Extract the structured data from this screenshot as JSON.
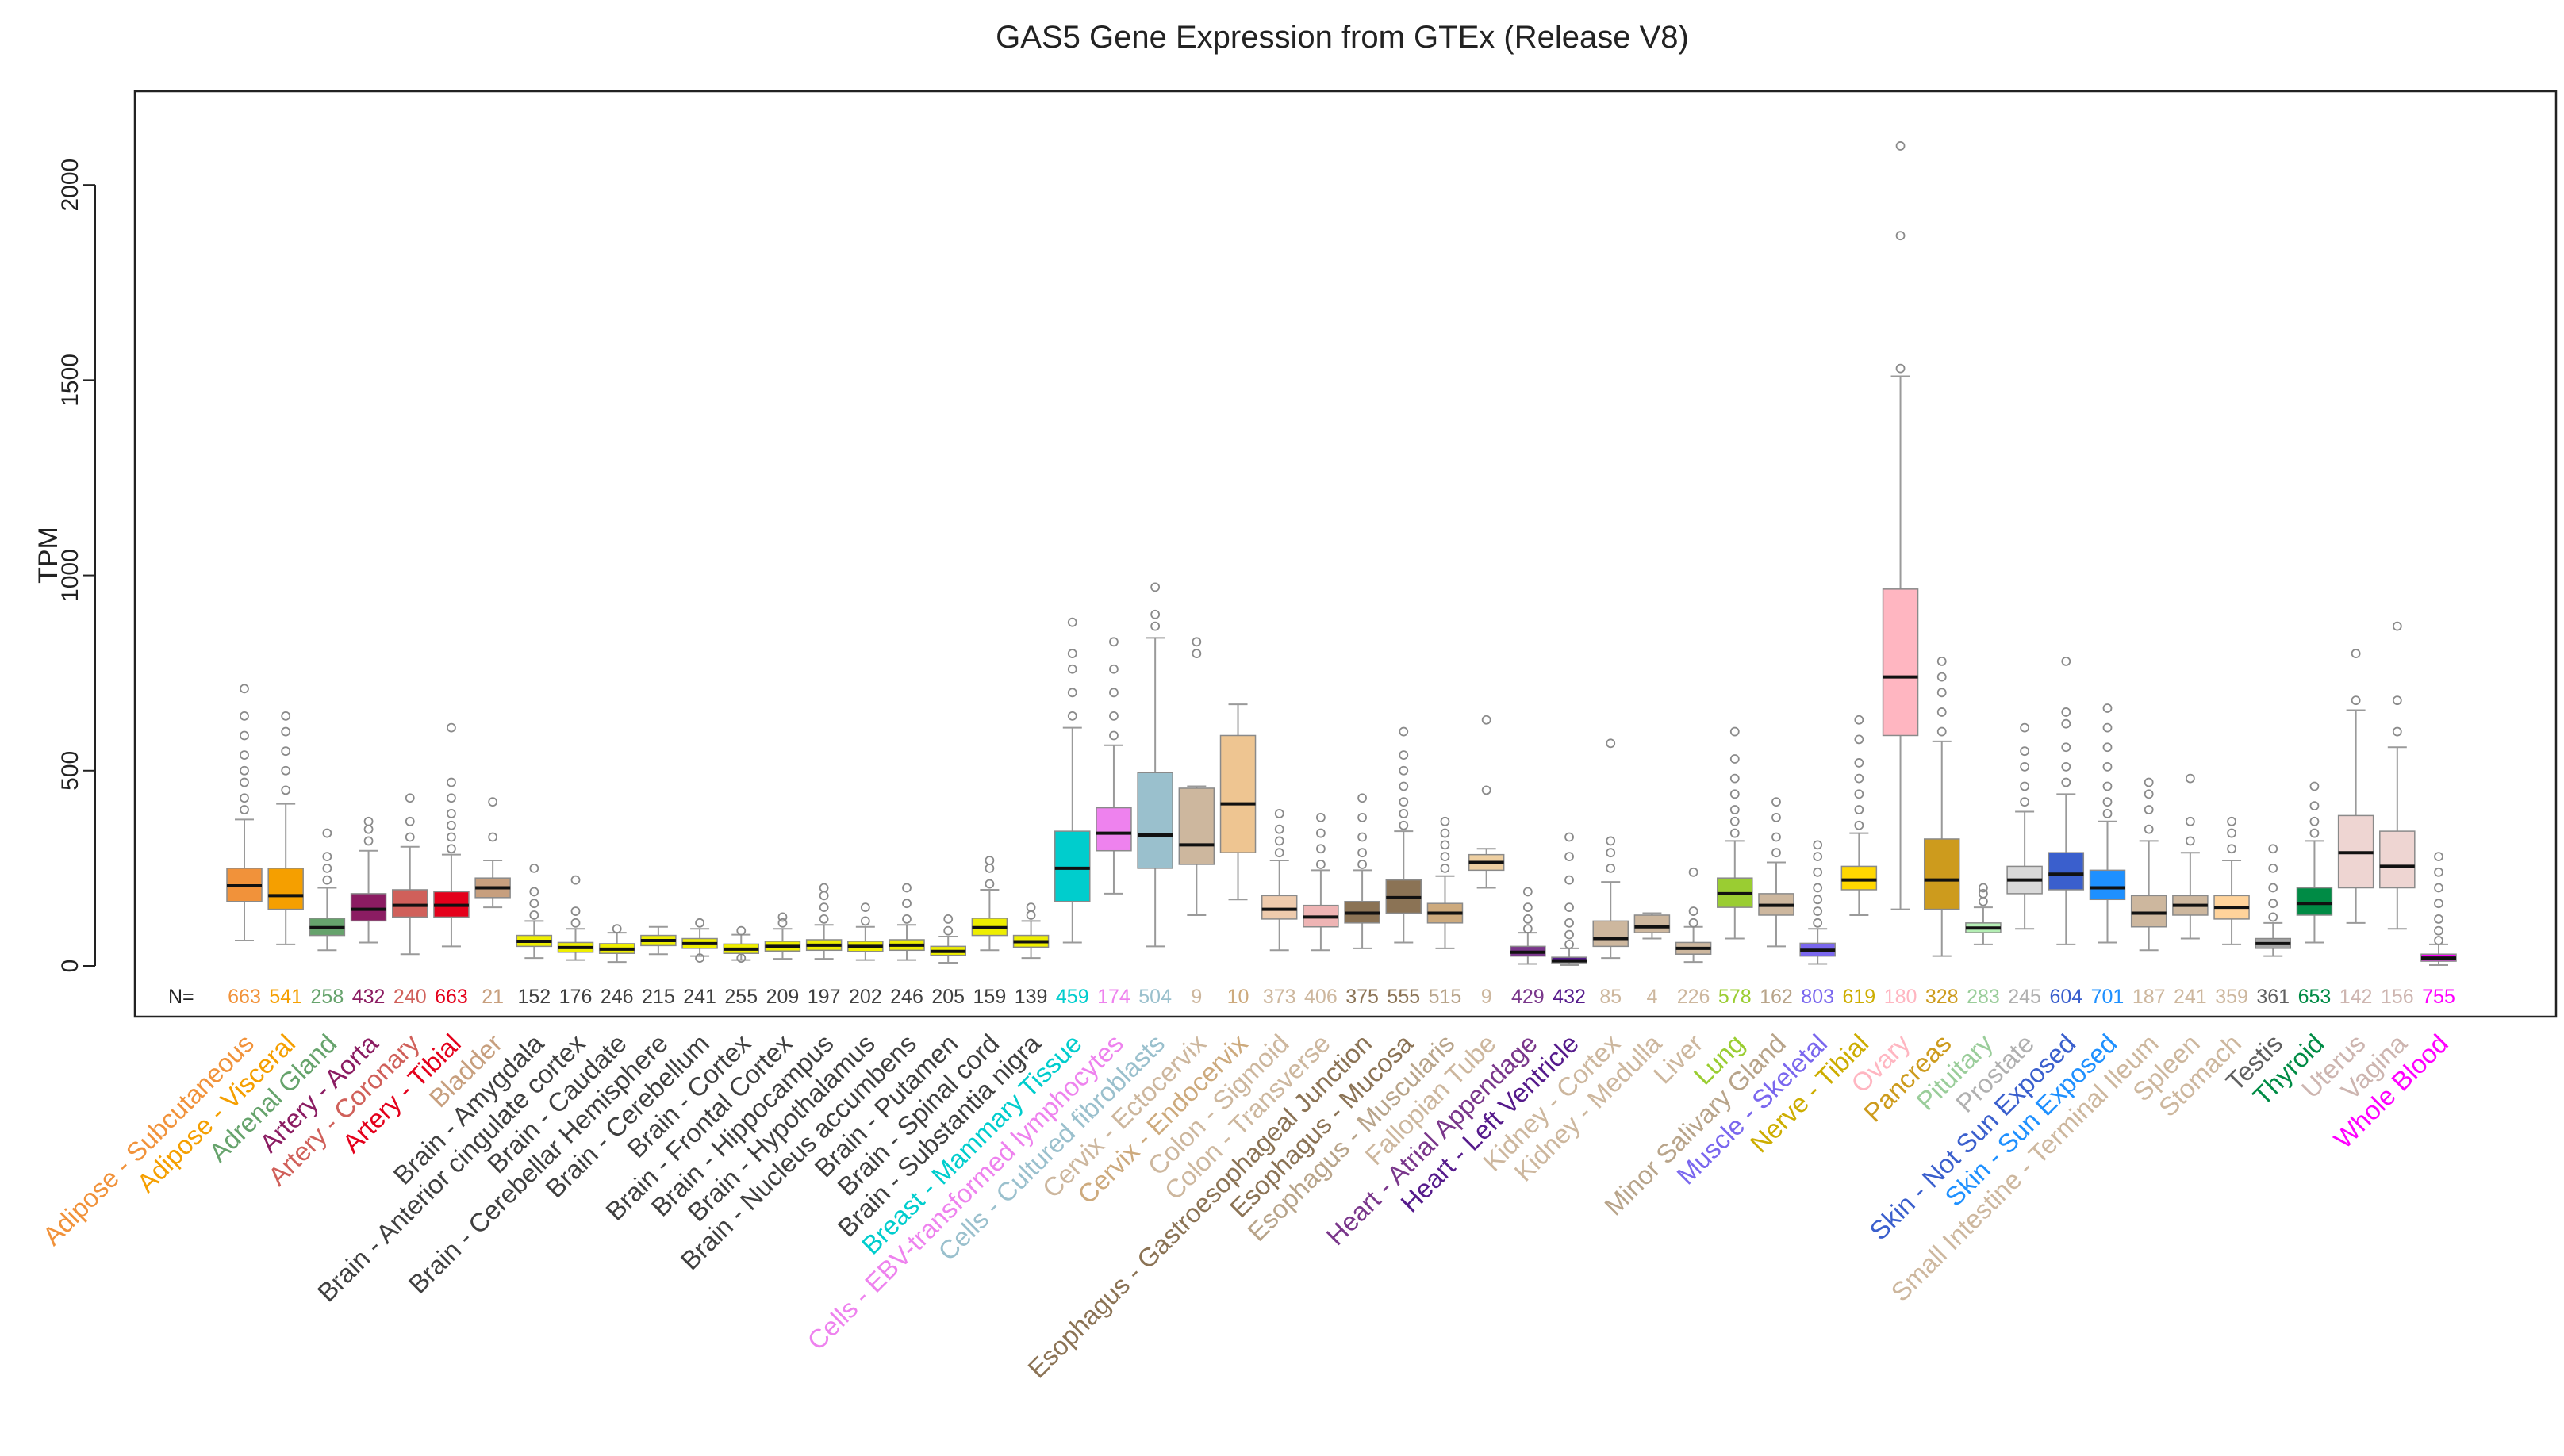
{
  "chart_data": {
    "type": "boxplot",
    "title": "GAS5 Gene Expression from GTEx (Release V8)",
    "ylabel": "TPM",
    "xlabel": "",
    "ylim": [
      -130,
      2240
    ],
    "yticks": [
      0,
      500,
      1000,
      1500,
      2000
    ],
    "n_label": "N=",
    "series": [
      {
        "name": "Adipose - Subcutaneous",
        "n": 663,
        "color": "#F1923A",
        "q1": 165,
        "median": 205,
        "q3": 250,
        "wlo": 65,
        "whi": 375,
        "outliers": [
          400,
          430,
          470,
          500,
          540,
          590,
          640,
          710
        ]
      },
      {
        "name": "Adipose - Visceral",
        "n": 541,
        "color": "#F59F00",
        "q1": 145,
        "median": 180,
        "q3": 250,
        "wlo": 55,
        "whi": 415,
        "outliers": [
          450,
          500,
          550,
          600,
          640
        ]
      },
      {
        "name": "Adrenal Gland",
        "n": 258,
        "color": "#66A36C",
        "q1": 78,
        "median": 98,
        "q3": 122,
        "wlo": 40,
        "whi": 200,
        "outliers": [
          220,
          250,
          280,
          340
        ]
      },
      {
        "name": "Artery - Aorta",
        "n": 432,
        "color": "#8B1C62",
        "q1": 115,
        "median": 145,
        "q3": 185,
        "wlo": 60,
        "whi": 295,
        "outliers": [
          320,
          350,
          370
        ]
      },
      {
        "name": "Artery - Coronary",
        "n": 240,
        "color": "#D0605A",
        "q1": 125,
        "median": 155,
        "q3": 195,
        "wlo": 30,
        "whi": 305,
        "outliers": [
          330,
          370,
          430
        ]
      },
      {
        "name": "Artery - Tibial",
        "n": 663,
        "color": "#E4001B",
        "q1": 125,
        "median": 155,
        "q3": 190,
        "wlo": 50,
        "whi": 285,
        "outliers": [
          300,
          330,
          360,
          390,
          430,
          470,
          610
        ]
      },
      {
        "name": "Bladder",
        "n": 21,
        "color": "#C79F7E",
        "q1": 175,
        "median": 200,
        "q3": 225,
        "wlo": 150,
        "whi": 270,
        "outliers": [
          330,
          420
        ]
      },
      {
        "name": "Brain - Amygdala",
        "n": 152,
        "color": "#EEEE00",
        "q1": 50,
        "median": 63,
        "q3": 78,
        "wlo": 20,
        "whi": 115,
        "outliers": [
          130,
          160,
          190,
          250
        ]
      },
      {
        "name": "Brain - Anterior cingulate cortex",
        "n": 176,
        "color": "#EEEE00",
        "q1": 35,
        "median": 47,
        "q3": 60,
        "wlo": 15,
        "whi": 95,
        "outliers": [
          110,
          140,
          220
        ]
      },
      {
        "name": "Brain - Caudate",
        "n": 246,
        "color": "#EEEE00",
        "q1": 32,
        "median": 43,
        "q3": 57,
        "wlo": 10,
        "whi": 85,
        "outliers": [
          95
        ]
      },
      {
        "name": "Brain - Cerebellar Hemisphere",
        "n": 215,
        "color": "#EEEE00",
        "q1": 52,
        "median": 65,
        "q3": 78,
        "wlo": 30,
        "whi": 100,
        "outliers": []
      },
      {
        "name": "Brain - Cerebellum",
        "n": 241,
        "color": "#EEEE00",
        "q1": 45,
        "median": 57,
        "q3": 70,
        "wlo": 25,
        "whi": 95,
        "outliers": [
          20,
          110
        ]
      },
      {
        "name": "Brain - Cortex",
        "n": 255,
        "color": "#EEEE00",
        "q1": 32,
        "median": 43,
        "q3": 56,
        "wlo": 15,
        "whi": 80,
        "outliers": [
          20,
          90
        ]
      },
      {
        "name": "Brain - Frontal Cortex",
        "n": 209,
        "color": "#EEEE00",
        "q1": 38,
        "median": 50,
        "q3": 63,
        "wlo": 18,
        "whi": 95,
        "outliers": [
          110,
          125
        ]
      },
      {
        "name": "Brain - Hippocampus",
        "n": 197,
        "color": "#EEEE00",
        "q1": 40,
        "median": 53,
        "q3": 67,
        "wlo": 18,
        "whi": 105,
        "outliers": [
          120,
          150,
          180,
          200
        ]
      },
      {
        "name": "Brain - Hypothalamus",
        "n": 202,
        "color": "#EEEE00",
        "q1": 37,
        "median": 50,
        "q3": 63,
        "wlo": 15,
        "whi": 100,
        "outliers": [
          115,
          150
        ]
      },
      {
        "name": "Brain - Nucleus accumbens",
        "n": 246,
        "color": "#EEEE00",
        "q1": 40,
        "median": 53,
        "q3": 67,
        "wlo": 15,
        "whi": 105,
        "outliers": [
          120,
          160,
          200
        ]
      },
      {
        "name": "Brain - Putamen",
        "n": 205,
        "color": "#EEEE00",
        "q1": 27,
        "median": 37,
        "q3": 50,
        "wlo": 8,
        "whi": 75,
        "outliers": [
          90,
          120
        ]
      },
      {
        "name": "Brain - Spinal cord",
        "n": 159,
        "color": "#EEEE00",
        "q1": 78,
        "median": 98,
        "q3": 122,
        "wlo": 40,
        "whi": 195,
        "outliers": [
          210,
          250,
          270
        ]
      },
      {
        "name": "Brain - Substantia nigra",
        "n": 139,
        "color": "#EEEE00",
        "q1": 48,
        "median": 62,
        "q3": 78,
        "wlo": 20,
        "whi": 115,
        "outliers": [
          130,
          150
        ]
      },
      {
        "name": "Breast - Mammary Tissue",
        "n": 459,
        "color": "#00CDCD",
        "q1": 165,
        "median": 250,
        "q3": 345,
        "wlo": 60,
        "whi": 610,
        "outliers": [
          640,
          700,
          760,
          800,
          880
        ]
      },
      {
        "name": "Cells - EBV-transformed lymphocytes",
        "n": 174,
        "color": "#EE82EE",
        "q1": 295,
        "median": 340,
        "q3": 405,
        "wlo": 185,
        "whi": 565,
        "outliers": [
          590,
          640,
          700,
          760,
          830
        ]
      },
      {
        "name": "Cells - Cultured fibroblasts",
        "n": 504,
        "color": "#9AC0CD",
        "q1": 250,
        "median": 335,
        "q3": 495,
        "wlo": 50,
        "whi": 840,
        "outliers": [
          870,
          900,
          970
        ]
      },
      {
        "name": "Cervix - Ectocervix",
        "n": 9,
        "color": "#CDB79E",
        "q1": 260,
        "median": 310,
        "q3": 455,
        "wlo": 130,
        "whi": 460,
        "outliers": [
          800,
          830
        ]
      },
      {
        "name": "Cervix - Endocervix",
        "n": 10,
        "color": "#EEC591",
        "q1": 290,
        "median": 415,
        "q3": 590,
        "wlo": 170,
        "whi": 670,
        "outliers": []
      },
      {
        "name": "Colon - Sigmoid",
        "n": 373,
        "color": "#EECBAD",
        "q1": 120,
        "median": 145,
        "q3": 180,
        "wlo": 40,
        "whi": 270,
        "outliers": [
          290,
          320,
          350,
          390
        ]
      },
      {
        "name": "Colon - Transverse",
        "n": 406,
        "color": "#EEB4B4",
        "q1": 100,
        "median": 125,
        "q3": 155,
        "wlo": 40,
        "whi": 245,
        "outliers": [
          260,
          300,
          340,
          380
        ]
      },
      {
        "name": "Esophagus - Gastroesophageal Junction",
        "n": 375,
        "color": "#8B7355",
        "q1": 110,
        "median": 135,
        "q3": 165,
        "wlo": 45,
        "whi": 245,
        "outliers": [
          260,
          290,
          330,
          380,
          430
        ]
      },
      {
        "name": "Esophagus - Mucosa",
        "n": 555,
        "color": "#8B7355",
        "q1": 135,
        "median": 175,
        "q3": 220,
        "wlo": 60,
        "whi": 345,
        "outliers": [
          360,
          390,
          420,
          460,
          500,
          540,
          600
        ]
      },
      {
        "name": "Esophagus - Muscularis",
        "n": 515,
        "color": "#CDAA7D",
        "q1": 110,
        "median": 135,
        "q3": 160,
        "wlo": 45,
        "whi": 230,
        "outliers": [
          250,
          280,
          310,
          340,
          370
        ]
      },
      {
        "name": "Fallopian Tube",
        "n": 9,
        "color": "#EECFA1",
        "q1": 245,
        "median": 265,
        "q3": 285,
        "wlo": 200,
        "whi": 300,
        "outliers": [
          450,
          630
        ]
      },
      {
        "name": "Heart - Atrial Appendage",
        "n": 429,
        "color": "#7A378B",
        "q1": 25,
        "median": 35,
        "q3": 50,
        "wlo": 5,
        "whi": 85,
        "outliers": [
          95,
          120,
          150,
          190
        ]
      },
      {
        "name": "Heart - Left Ventricle",
        "n": 432,
        "color": "#551A8B",
        "q1": 8,
        "median": 13,
        "q3": 22,
        "wlo": 2,
        "whi": 45,
        "outliers": [
          55,
          80,
          110,
          150,
          220,
          280,
          330
        ]
      },
      {
        "name": "Kidney - Cortex",
        "n": 85,
        "color": "#CDB79E",
        "q1": 50,
        "median": 70,
        "q3": 115,
        "wlo": 20,
        "whi": 215,
        "outliers": [
          250,
          290,
          320,
          570
        ]
      },
      {
        "name": "Kidney - Medulla",
        "n": 4,
        "color": "#CDB79E",
        "q1": 85,
        "median": 100,
        "q3": 130,
        "wlo": 70,
        "whi": 135,
        "outliers": []
      },
      {
        "name": "Liver",
        "n": 226,
        "color": "#CDB79E",
        "q1": 30,
        "median": 45,
        "q3": 60,
        "wlo": 10,
        "whi": 100,
        "outliers": [
          110,
          140,
          240
        ]
      },
      {
        "name": "Lung",
        "n": 578,
        "color": "#9ACD32",
        "q1": 150,
        "median": 185,
        "q3": 225,
        "wlo": 70,
        "whi": 320,
        "outliers": [
          340,
          370,
          400,
          440,
          480,
          530,
          600
        ]
      },
      {
        "name": "Minor Salivary Gland",
        "n": 162,
        "color": "#CDB79E",
        "q1": 130,
        "median": 155,
        "q3": 185,
        "wlo": 50,
        "whi": 265,
        "outliers": [
          290,
          330,
          380,
          420
        ]
      },
      {
        "name": "Muscle - Skeletal",
        "n": 803,
        "color": "#7A67EE",
        "q1": 25,
        "median": 40,
        "q3": 58,
        "wlo": 5,
        "whi": 95,
        "outliers": [
          110,
          140,
          170,
          200,
          240,
          280,
          310
        ]
      },
      {
        "name": "Nerve - Tibial",
        "n": 619,
        "color": "#FFD700",
        "q1": 195,
        "median": 220,
        "q3": 255,
        "wlo": 130,
        "whi": 340,
        "outliers": [
          360,
          400,
          440,
          480,
          520,
          580,
          630
        ]
      },
      {
        "name": "Ovary",
        "n": 180,
        "color": "#FFB6C1",
        "q1": 590,
        "median": 740,
        "q3": 965,
        "wlo": 145,
        "whi": 1510,
        "outliers": [
          1530,
          1870,
          2100
        ]
      },
      {
        "name": "Pancreas",
        "n": 328,
        "color": "#CD9B1D",
        "q1": 145,
        "median": 220,
        "q3": 325,
        "wlo": 25,
        "whi": 575,
        "outliers": [
          600,
          650,
          700,
          740,
          780
        ]
      },
      {
        "name": "Pituitary",
        "n": 283,
        "color": "#B4EEB4",
        "q1": 85,
        "median": 97,
        "q3": 110,
        "wlo": 55,
        "whi": 150,
        "outliers": [
          165,
          185,
          200
        ]
      },
      {
        "name": "Prostate",
        "n": 245,
        "color": "#D9D9D9",
        "q1": 185,
        "median": 220,
        "q3": 255,
        "wlo": 95,
        "whi": 395,
        "outliers": [
          420,
          460,
          510,
          550,
          610
        ]
      },
      {
        "name": "Skin - Not Sun Exposed",
        "n": 604,
        "color": "#3A5FCD",
        "q1": 195,
        "median": 235,
        "q3": 290,
        "wlo": 55,
        "whi": 440,
        "outliers": [
          470,
          510,
          560,
          620,
          650,
          780
        ]
      },
      {
        "name": "Skin - Sun Exposed",
        "n": 701,
        "color": "#1E90FF",
        "q1": 170,
        "median": 200,
        "q3": 245,
        "wlo": 60,
        "whi": 370,
        "outliers": [
          390,
          420,
          460,
          510,
          560,
          610,
          660
        ]
      },
      {
        "name": "Small Intestine - Terminal Ileum",
        "n": 187,
        "color": "#CDB79E",
        "q1": 100,
        "median": 135,
        "q3": 180,
        "wlo": 40,
        "whi": 320,
        "outliers": [
          350,
          400,
          440,
          470
        ]
      },
      {
        "name": "Spleen",
        "n": 241,
        "color": "#CDB79E",
        "q1": 130,
        "median": 155,
        "q3": 180,
        "wlo": 70,
        "whi": 290,
        "outliers": [
          320,
          370,
          480
        ]
      },
      {
        "name": "Stomach",
        "n": 359,
        "color": "#FFD39B",
        "q1": 120,
        "median": 150,
        "q3": 180,
        "wlo": 55,
        "whi": 270,
        "outliers": [
          300,
          340,
          370
        ]
      },
      {
        "name": "Testis",
        "n": 361,
        "color": "#A6A6A6",
        "q1": 45,
        "median": 57,
        "q3": 70,
        "wlo": 25,
        "whi": 110,
        "outliers": [
          125,
          160,
          200,
          250,
          300
        ]
      },
      {
        "name": "Thyroid",
        "n": 653,
        "color": "#008B45",
        "q1": 130,
        "median": 160,
        "q3": 200,
        "wlo": 60,
        "whi": 320,
        "outliers": [
          340,
          370,
          410,
          460
        ]
      },
      {
        "name": "Uterus",
        "n": 142,
        "color": "#EED5D2",
        "q1": 200,
        "median": 290,
        "q3": 385,
        "wlo": 110,
        "whi": 655,
        "outliers": [
          680,
          800
        ]
      },
      {
        "name": "Vagina",
        "n": 156,
        "color": "#EED5D2",
        "q1": 200,
        "median": 255,
        "q3": 345,
        "wlo": 95,
        "whi": 560,
        "outliers": [
          600,
          680,
          870
        ]
      },
      {
        "name": "Whole Blood",
        "n": 755,
        "color": "#FF00FF",
        "q1": 12,
        "median": 20,
        "q3": 30,
        "wlo": 2,
        "whi": 55,
        "outliers": [
          65,
          90,
          120,
          160,
          200,
          240,
          280
        ]
      }
    ],
    "label_colors": [
      "#F1923A",
      "#F59F00",
      "#66A36C",
      "#8B1C62",
      "#D0605A",
      "#E4001B",
      "#C79F7E",
      "#404040",
      "#404040",
      "#404040",
      "#404040",
      "#404040",
      "#404040",
      "#404040",
      "#404040",
      "#404040",
      "#404040",
      "#404040",
      "#404040",
      "#404040",
      "#00CDCD",
      "#EE82EE",
      "#9AC0CD",
      "#CDB79E",
      "#CDAA7D",
      "#CDB79E",
      "#CDB79E",
      "#8B7355",
      "#8B7355",
      "#B8A48A",
      "#CDB79E",
      "#7A378B",
      "#551A8B",
      "#CDB79E",
      "#CDB79E",
      "#CDB79E",
      "#9ACD32",
      "#B8A48A",
      "#7A67EE",
      "#CDAD00",
      "#FFB6C1",
      "#CD9B1D",
      "#9ACD9A",
      "#B0B0B0",
      "#3A5FCD",
      "#1E90FF",
      "#CDB79E",
      "#CDB79E",
      "#CDB79E",
      "#606060",
      "#008B45",
      "#CDB5B0",
      "#CDB5B0",
      "#FF00FF"
    ]
  }
}
